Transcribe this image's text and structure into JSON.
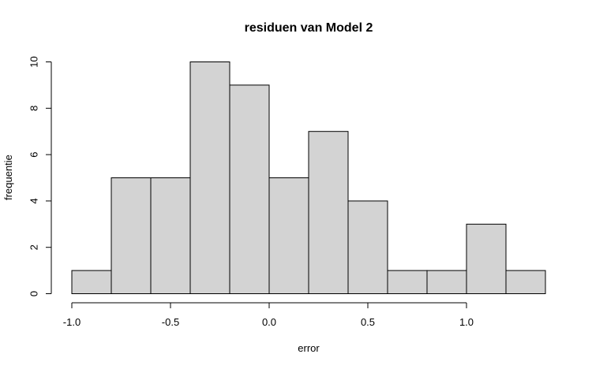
{
  "chart_data": {
    "type": "bar",
    "title": "residuen van Model 2",
    "xlabel": "error",
    "ylabel": "frequentie",
    "bins": [
      {
        "from": -1.0,
        "to": -0.8,
        "count": 1
      },
      {
        "from": -0.8,
        "to": -0.6,
        "count": 5
      },
      {
        "from": -0.6,
        "to": -0.4,
        "count": 5
      },
      {
        "from": -0.4,
        "to": -0.2,
        "count": 10
      },
      {
        "from": -0.2,
        "to": 0.0,
        "count": 9
      },
      {
        "from": 0.0,
        "to": 0.2,
        "count": 5
      },
      {
        "from": 0.2,
        "to": 0.4,
        "count": 7
      },
      {
        "from": 0.4,
        "to": 0.6,
        "count": 4
      },
      {
        "from": 0.6,
        "to": 0.8,
        "count": 1
      },
      {
        "from": 0.8,
        "to": 1.0,
        "count": 1
      },
      {
        "from": 1.0,
        "to": 1.2,
        "count": 3
      },
      {
        "from": 1.2,
        "to": 1.4,
        "count": 1
      }
    ],
    "xlim": [
      -1.0,
      1.4
    ],
    "ylim": [
      0,
      10
    ],
    "x_ticks": [
      -1.0,
      -0.5,
      0.0,
      0.5,
      1.0
    ],
    "x_tick_labels": [
      "-1.0",
      "-0.5",
      "0.0",
      "0.5",
      "1.0"
    ],
    "y_ticks": [
      0,
      2,
      4,
      6,
      8,
      10
    ],
    "y_tick_labels": [
      "0",
      "2",
      "4",
      "6",
      "8",
      "10"
    ],
    "bar_fill": "#d3d3d3",
    "bar_stroke": "#000000",
    "grid": false,
    "legend": "none"
  }
}
